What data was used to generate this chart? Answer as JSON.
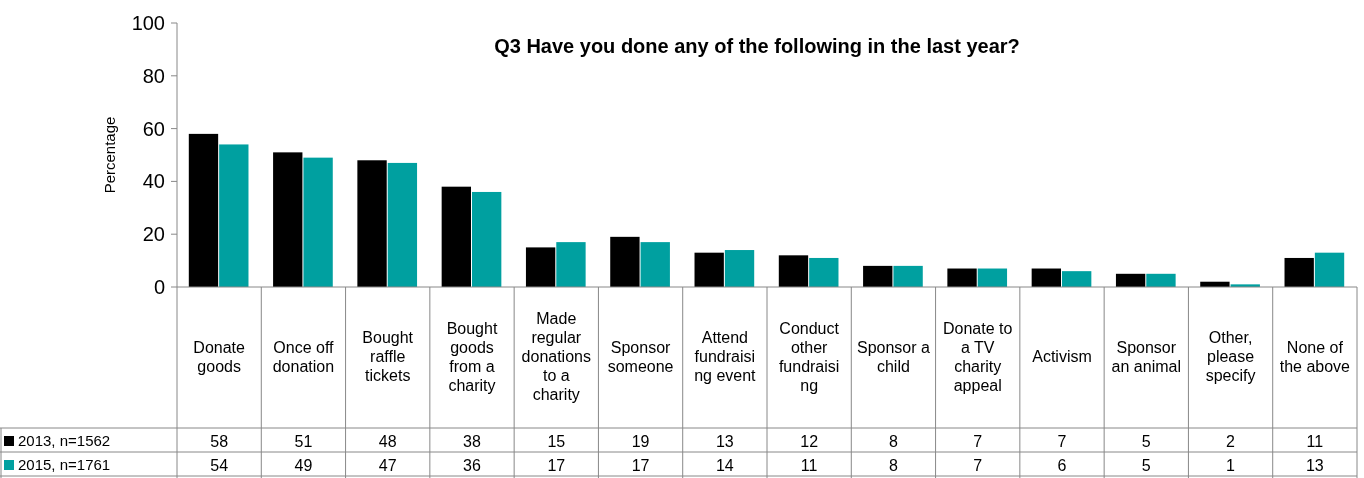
{
  "chart_data": {
    "type": "bar",
    "title": "Q3 Have you done any of the following in the last year?",
    "ylabel": "Percentage",
    "categories": [
      "Donate goods",
      "Once off donation",
      "Bought raffle tickets",
      "Bought goods from a charity",
      "Made regular donations to a charity",
      "Sponsor someone",
      "Attend fundraising event",
      "Conduct other fundraising",
      "Sponsor a child",
      "Donate to a TV charity appeal",
      "Activism",
      "Sponsor an animal",
      "Other, please specify",
      "None of the above"
    ],
    "series": [
      {
        "name": "2013, n=1562",
        "color": "#000000",
        "values": [
          58,
          51,
          48,
          38,
          15,
          19,
          13,
          12,
          8,
          7,
          7,
          5,
          2,
          11
        ]
      },
      {
        "name": "2015, n=1761",
        "color": "#00a0a0",
        "values": [
          54,
          49,
          47,
          36,
          17,
          17,
          14,
          11,
          8,
          7,
          6,
          5,
          1,
          13
        ]
      }
    ],
    "ylim": [
      0,
      100
    ],
    "yticks": [
      0,
      20,
      40,
      60,
      80,
      100
    ],
    "grid": false,
    "legend": "bottom left",
    "data_labels": true
  }
}
